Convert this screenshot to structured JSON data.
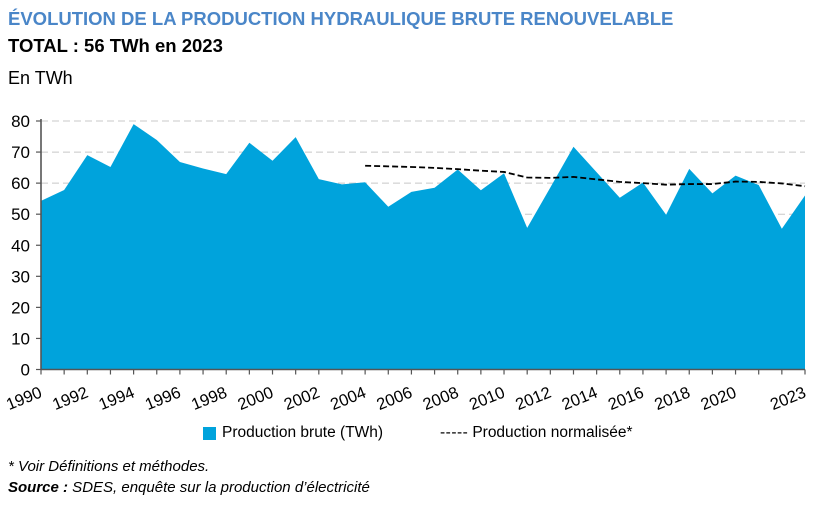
{
  "header": {
    "title": "ÉVOLUTION DE LA PRODUCTION HYDRAULIQUE BRUTE RENOUVELABLE",
    "subtitle": "TOTAL : 56 TWh en 2023",
    "unit": "En TWh"
  },
  "colors": {
    "title": "#4A86C8",
    "area_fill": "#00A3DC",
    "normalized_line": "#000000",
    "gridline": "#C8C8C8",
    "axis": "#555555"
  },
  "legend": {
    "items": [
      {
        "label": "Production brute (TWh)",
        "marker": "square-swatch"
      },
      {
        "label": "Production normalisée*",
        "marker": "dashed-line",
        "dash_text": "-----"
      }
    ]
  },
  "footer": {
    "footnote": "* Voir Définitions et méthodes.",
    "source_label": "Source :",
    "source_text": " SDES, enquête sur la production d’électricité"
  },
  "chart_data": {
    "type": "area",
    "title": "ÉVOLUTION DE LA PRODUCTION HYDRAULIQUE BRUTE RENOUVELABLE",
    "subtitle": "TOTAL : 56 TWh en 2023",
    "xlabel": "",
    "ylabel": "En TWh",
    "ylim": [
      0,
      80
    ],
    "xlim": [
      1990,
      2023
    ],
    "y_ticks": [
      0,
      10,
      20,
      30,
      40,
      50,
      60,
      70,
      80
    ],
    "x_tick_labels": [
      "1990",
      "1992",
      "1994",
      "1996",
      "1998",
      "2000",
      "2002",
      "2004",
      "2006",
      "2008",
      "2010",
      "2012",
      "2014",
      "2016",
      "2018",
      "2020",
      "2023"
    ],
    "grid": "horizontal-dashed",
    "legend_position": "bottom",
    "series": [
      {
        "name": "Production brute (TWh)",
        "type": "area",
        "x": [
          1990,
          1991,
          1992,
          1993,
          1994,
          1995,
          1996,
          1997,
          1998,
          1999,
          2000,
          2001,
          2002,
          2003,
          2004,
          2005,
          2006,
          2007,
          2008,
          2009,
          2010,
          2011,
          2012,
          2013,
          2014,
          2015,
          2016,
          2017,
          2018,
          2019,
          2020,
          2021,
          2022,
          2023
        ],
        "values": [
          54.3,
          57.8,
          69.0,
          65.2,
          79.0,
          73.9,
          66.8,
          64.7,
          62.9,
          73.0,
          67.2,
          74.8,
          61.3,
          59.6,
          60.3,
          52.4,
          57.2,
          58.5,
          64.4,
          57.7,
          63.2,
          45.6,
          58.6,
          71.7,
          63.5,
          55.3,
          60.2,
          49.8,
          64.6,
          56.7,
          62.4,
          59.4,
          45.3,
          56.0
        ]
      },
      {
        "name": "Production normalisée*",
        "type": "line-dashed",
        "x": [
          2004,
          2005,
          2006,
          2007,
          2008,
          2009,
          2010,
          2011,
          2012,
          2013,
          2014,
          2015,
          2016,
          2017,
          2018,
          2019,
          2020,
          2021,
          2022,
          2023
        ],
        "values": [
          65.6,
          65.4,
          65.2,
          64.9,
          64.5,
          64.0,
          63.6,
          61.8,
          61.7,
          62.0,
          61.2,
          60.4,
          60.0,
          59.5,
          59.7,
          59.7,
          60.5,
          60.4,
          59.9,
          59.0
        ]
      }
    ]
  }
}
